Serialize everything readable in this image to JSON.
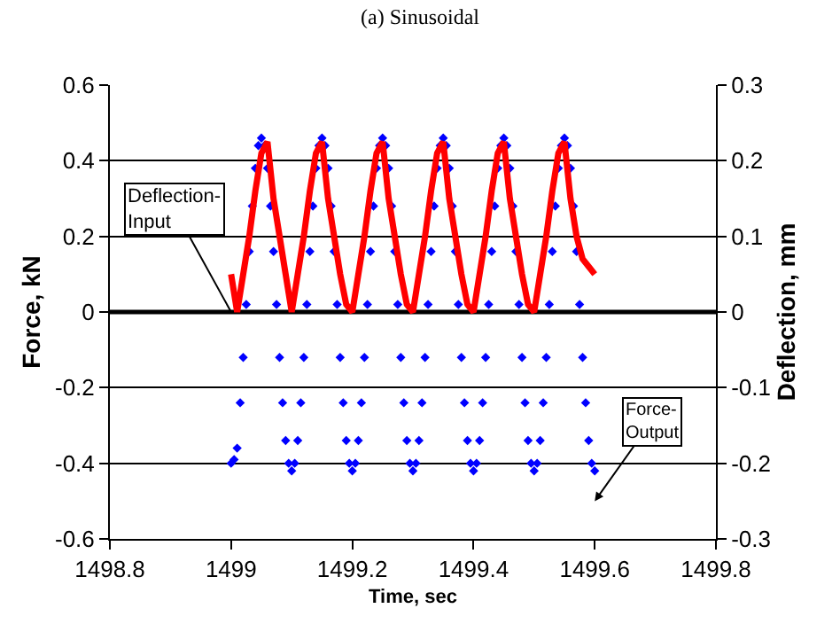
{
  "chart_data": {
    "type": "scatter",
    "title": "(a) Sinusoidal",
    "xlabel": "Time, sec",
    "ylabel": "Force, kN",
    "y2label": "Deflection, mm",
    "xlim": [
      1498.8,
      1499.8
    ],
    "xticks": [
      1498.8,
      1499,
      1499.2,
      1499.4,
      1499.6,
      1499.8
    ],
    "ylim": [
      -0.6,
      0.6
    ],
    "yticks": [
      -0.6,
      -0.4,
      -0.2,
      0,
      0.2,
      0.4,
      0.6
    ],
    "y2lim": [
      -0.3,
      0.3
    ],
    "y2ticks": [
      -0.3,
      -0.2,
      -0.1,
      0,
      0.1,
      0.2,
      0.3
    ],
    "grid": "y",
    "marker": "diamond",
    "ref_lines": [
      {
        "axis": "y",
        "value": 0,
        "color": "#000000"
      }
    ],
    "x": [
      1499.0,
      1499.01,
      1499.02,
      1499.03,
      1499.04,
      1499.05,
      1499.06,
      1499.07,
      1499.08,
      1499.09,
      1499.1,
      1499.11,
      1499.12,
      1499.13,
      1499.14,
      1499.15,
      1499.16,
      1499.17,
      1499.18,
      1499.19,
      1499.2,
      1499.21,
      1499.22,
      1499.23,
      1499.24,
      1499.25,
      1499.26,
      1499.27,
      1499.28,
      1499.29,
      1499.3,
      1499.31,
      1499.32,
      1499.33,
      1499.34,
      1499.35,
      1499.36,
      1499.37,
      1499.38,
      1499.39,
      1499.4,
      1499.41,
      1499.42,
      1499.43,
      1499.44,
      1499.45,
      1499.46,
      1499.47,
      1499.48,
      1499.49,
      1499.5,
      1499.51,
      1499.52,
      1499.53,
      1499.54,
      1499.55,
      1499.56,
      1499.57,
      1499.58,
      1499.59,
      1499.6
    ],
    "series": [
      {
        "color": "#0000ff",
        "x": [
          1499.0,
          1499.005,
          1499.01,
          1499.015,
          1499.02,
          1499.025,
          1499.03,
          1499.035,
          1499.04,
          1499.045,
          1499.05,
          1499.055,
          1499.06,
          1499.065,
          1499.07,
          1499.075,
          1499.08,
          1499.085,
          1499.09,
          1499.095,
          1499.1,
          1499.105,
          1499.11,
          1499.115,
          1499.12,
          1499.125,
          1499.13,
          1499.135,
          1499.14,
          1499.145,
          1499.15,
          1499.155,
          1499.16,
          1499.165,
          1499.17,
          1499.175,
          1499.18,
          1499.185,
          1499.19,
          1499.195,
          1499.2,
          1499.205,
          1499.21,
          1499.215,
          1499.22,
          1499.225,
          1499.23,
          1499.235,
          1499.24,
          1499.245,
          1499.25,
          1499.255,
          1499.26,
          1499.265,
          1499.27,
          1499.275,
          1499.28,
          1499.285,
          1499.29,
          1499.295,
          1499.3,
          1499.305,
          1499.31,
          1499.315,
          1499.32,
          1499.325,
          1499.33,
          1499.335,
          1499.34,
          1499.345,
          1499.35,
          1499.355,
          1499.36,
          1499.365,
          1499.37,
          1499.375,
          1499.38,
          1499.385,
          1499.39,
          1499.395,
          1499.4,
          1499.405,
          1499.41,
          1499.415,
          1499.42,
          1499.425,
          1499.43,
          1499.435,
          1499.44,
          1499.445,
          1499.45,
          1499.455,
          1499.46,
          1499.465,
          1499.47,
          1499.475,
          1499.48,
          1499.485,
          1499.49,
          1499.495,
          1499.5,
          1499.505,
          1499.51,
          1499.515,
          1499.52,
          1499.525,
          1499.53,
          1499.535,
          1499.54,
          1499.545,
          1499.55,
          1499.555,
          1499.56,
          1499.565,
          1499.57,
          1499.575,
          1499.58,
          1499.585,
          1499.59,
          1499.595,
          1499.6
        ],
        "values": [
          -0.4,
          -0.39,
          -0.36,
          -0.24,
          -0.12,
          0.02,
          0.16,
          0.28,
          0.38,
          0.44,
          0.46,
          0.44,
          0.38,
          0.28,
          0.16,
          0.02,
          -0.12,
          -0.24,
          -0.34,
          -0.4,
          -0.42,
          -0.4,
          -0.34,
          -0.24,
          -0.12,
          0.02,
          0.16,
          0.28,
          0.38,
          0.44,
          0.46,
          0.44,
          0.38,
          0.28,
          0.16,
          0.02,
          -0.12,
          -0.24,
          -0.34,
          -0.4,
          -0.42,
          -0.4,
          -0.34,
          -0.24,
          -0.12,
          0.02,
          0.16,
          0.28,
          0.38,
          0.44,
          0.46,
          0.44,
          0.38,
          0.28,
          0.16,
          0.02,
          -0.12,
          -0.24,
          -0.34,
          -0.4,
          -0.42,
          -0.4,
          -0.34,
          -0.24,
          -0.12,
          0.02,
          0.16,
          0.28,
          0.38,
          0.44,
          0.46,
          0.44,
          0.38,
          0.28,
          0.16,
          0.02,
          -0.12,
          -0.24,
          -0.34,
          -0.4,
          -0.42,
          -0.4,
          -0.34,
          -0.24,
          -0.12,
          0.02,
          0.16,
          0.28,
          0.38,
          0.44,
          0.46,
          0.44,
          0.38,
          0.28,
          0.16,
          0.02,
          -0.12,
          -0.24,
          -0.34,
          -0.4,
          -0.42,
          -0.4,
          -0.34,
          -0.24,
          -0.12,
          0.02,
          0.16,
          0.28,
          0.38,
          0.44,
          0.46,
          0.44,
          0.38,
          0.28,
          0.16,
          0.02,
          -0.12,
          -0.24,
          -0.34,
          -0.4,
          -0.42
        ]
      },
      {
        "type": "line",
        "axis": "y2",
        "color": "#ff0000",
        "marker": "none",
        "values": [
          0.05,
          0.0,
          0.05,
          0.1,
          0.16,
          0.21,
          0.225,
          0.15,
          0.1,
          0.05,
          0.0,
          0.05,
          0.1,
          0.16,
          0.21,
          0.225,
          0.15,
          0.1,
          0.05,
          0.01,
          0.0,
          0.05,
          0.1,
          0.16,
          0.21,
          0.225,
          0.15,
          0.1,
          0.05,
          0.01,
          0.0,
          0.05,
          0.1,
          0.16,
          0.21,
          0.225,
          0.15,
          0.1,
          0.05,
          0.01,
          0.0,
          0.05,
          0.1,
          0.16,
          0.21,
          0.225,
          0.15,
          0.1,
          0.05,
          0.01,
          0.0,
          0.05,
          0.1,
          0.16,
          0.21,
          0.225,
          0.15,
          0.1,
          0.07,
          0.06,
          0.05
        ]
      }
    ],
    "annotations": [
      {
        "text": "Deflection-Input",
        "x": 1499.0,
        "y": 0.0
      },
      "Force-Output"
    ]
  }
}
